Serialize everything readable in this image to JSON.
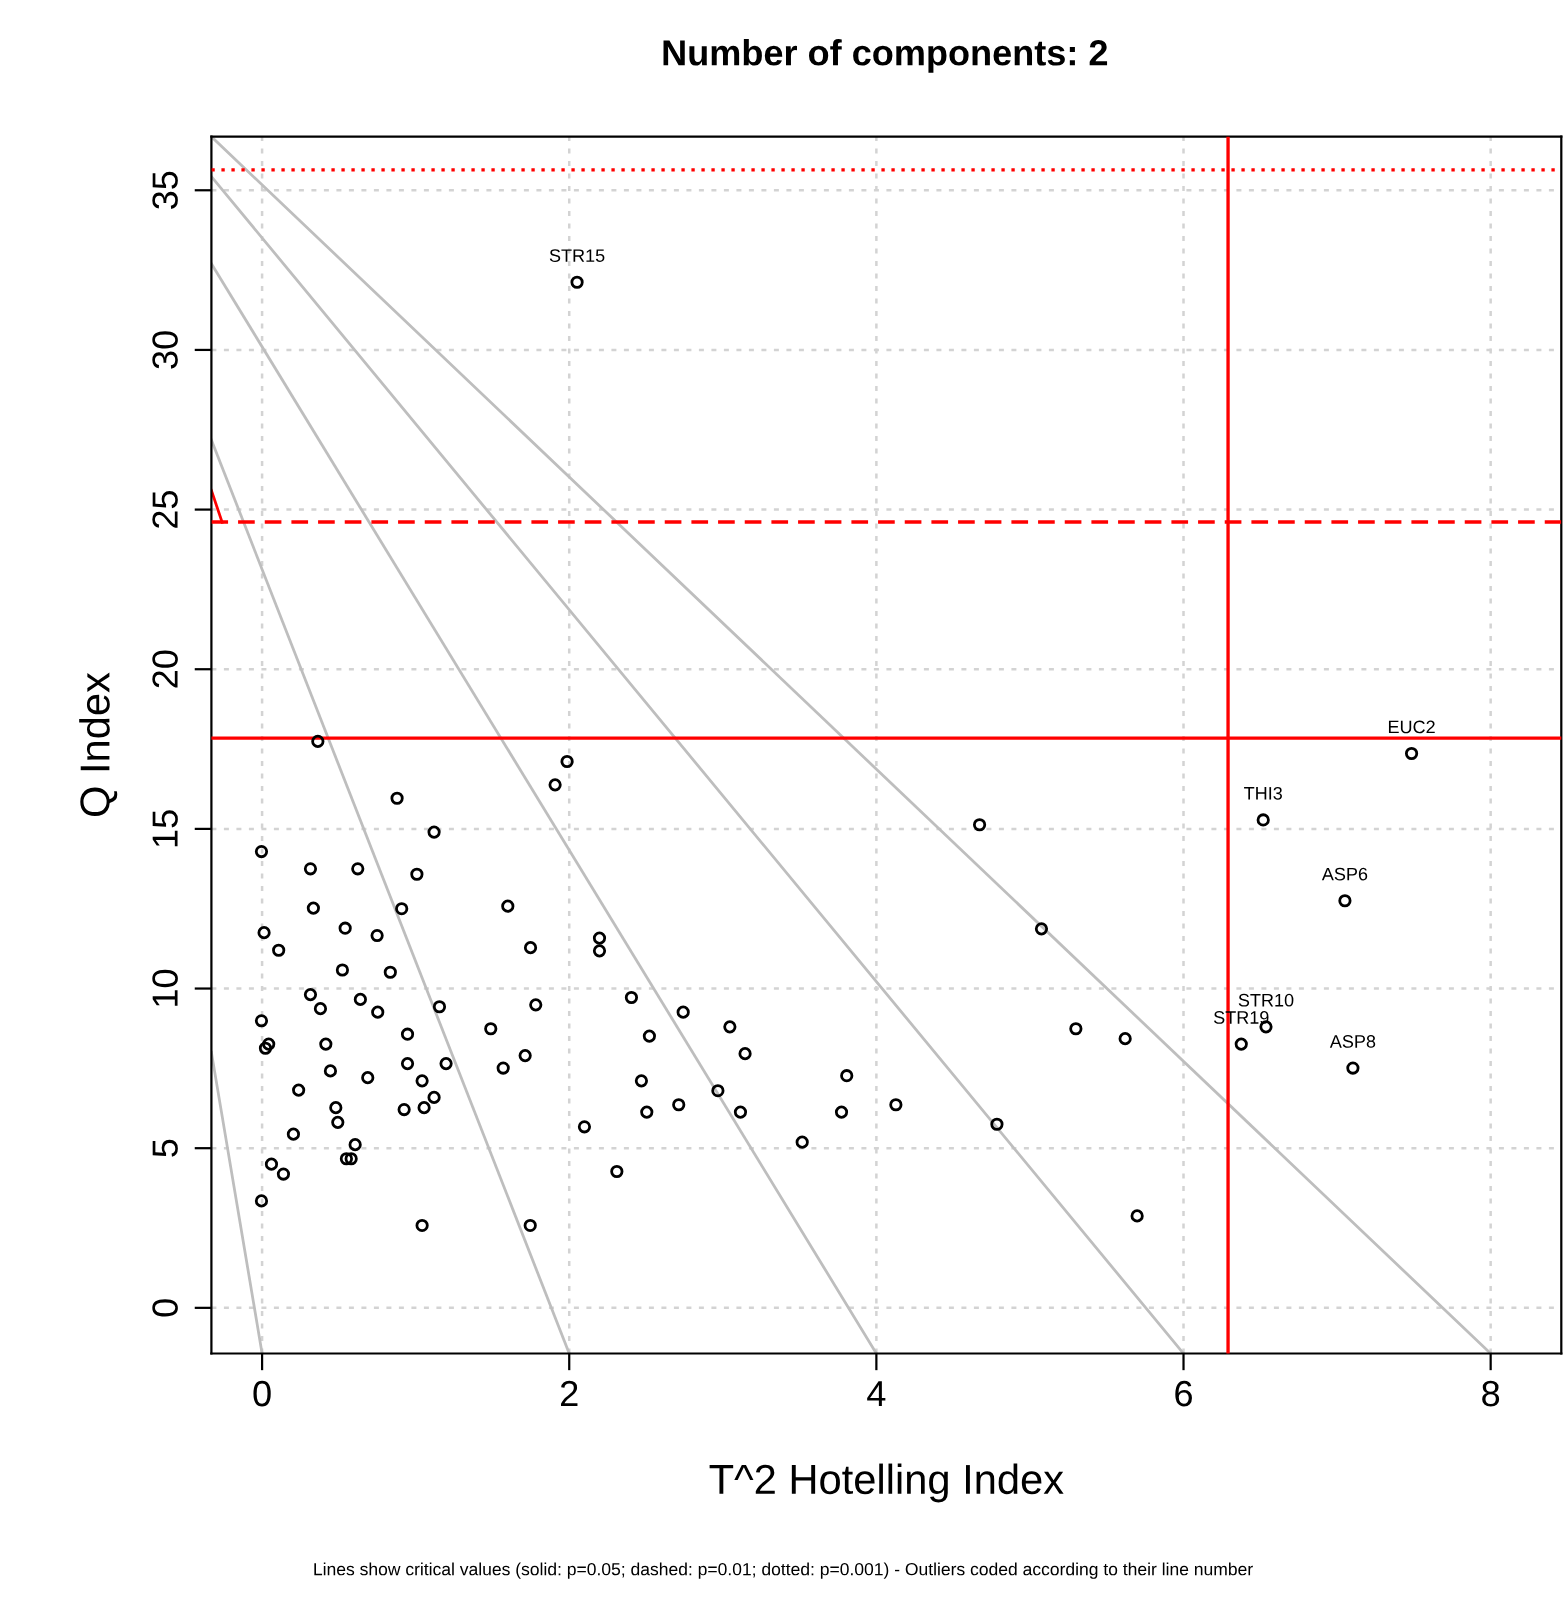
{
  "chart_data": {
    "type": "scatter",
    "title": "Number of components: 2",
    "xlabel": "T^2 Hotelling Index",
    "ylabel": "Q Index",
    "xlim": [
      -0.33,
      8.46
    ],
    "ylim": [
      -1.43,
      36.68
    ],
    "xticks": [
      0,
      2,
      4,
      6,
      8
    ],
    "yticks": [
      0,
      5,
      10,
      15,
      20,
      25,
      30,
      35
    ],
    "grid": true,
    "series": [
      {
        "marker": "circle",
        "color": "#000000",
        "x": [
          0.363,
          0.879,
          1.986,
          1.908,
          1.12,
          -0.004,
          0.315,
          0.623,
          1.008,
          0.334,
          0.909,
          0.013,
          0.108,
          0.541,
          0.749,
          0.523,
          0.835,
          0.315,
          0.64,
          0.38,
          0.753,
          1.155,
          1.489,
          -0.004,
          0.043,
          0.022,
          0.415,
          0.947,
          0.445,
          0.688,
          0.947,
          1.198,
          1.042,
          0.238,
          0.48,
          1.12,
          1.055,
          0.925,
          0.493,
          0.204,
          0.606,
          0.549,
          0.58,
          0.061,
          0.139,
          -0.004,
          1.042,
          1.746,
          5.698,
          1.6,
          1.748,
          2.197,
          2.197,
          1.782,
          1.713,
          1.57,
          2.405,
          2.742,
          3.046,
          2.522,
          3.145,
          3.807,
          2.47,
          2.968,
          2.505,
          2.713,
          3.115,
          3.773,
          2.099,
          3.517,
          2.31,
          4.672,
          5.075,
          5.299,
          5.62,
          4.127,
          4.785,
          7.485,
          6.519,
          7.051,
          6.537,
          6.376,
          7.103,
          2.051
        ],
        "values": [
          17.74,
          15.96,
          17.11,
          16.38,
          14.9,
          14.29,
          13.75,
          13.75,
          13.58,
          12.52,
          12.5,
          11.75,
          11.2,
          11.89,
          11.66,
          10.58,
          10.51,
          9.81,
          9.66,
          9.37,
          9.26,
          9.43,
          8.74,
          8.99,
          8.26,
          8.13,
          8.26,
          8.57,
          7.42,
          7.21,
          7.65,
          7.65,
          7.11,
          6.82,
          6.27,
          6.59,
          6.27,
          6.21,
          5.81,
          5.44,
          5.11,
          4.67,
          4.67,
          4.5,
          4.19,
          3.35,
          2.58,
          2.58,
          2.88,
          12.58,
          11.28,
          11.58,
          11.18,
          9.49,
          7.9,
          7.51,
          9.72,
          9.26,
          8.8,
          8.51,
          7.96,
          7.27,
          7.11,
          6.8,
          6.13,
          6.36,
          6.13,
          6.13,
          5.67,
          5.19,
          4.27,
          15.13,
          11.87,
          8.74,
          8.43,
          6.36,
          5.75,
          17.36,
          15.28,
          12.75,
          8.8,
          8.26,
          7.51,
          32.12
        ]
      },
      {
        "type": "line",
        "color": "#bebebe",
        "x": [
          -0.33,
          0
        ],
        "values": [
          8.0,
          -1.43
        ]
      },
      {
        "type": "line",
        "color": "#bebebe",
        "x": [
          -0.33,
          2
        ],
        "values": [
          27.18,
          -1.43
        ]
      },
      {
        "type": "line",
        "color": "#bebebe",
        "x": [
          -0.33,
          4
        ],
        "values": [
          32.7,
          -1.43
        ]
      },
      {
        "type": "line",
        "color": "#bebebe",
        "x": [
          -0.33,
          6
        ],
        "values": [
          35.43,
          -1.43
        ]
      },
      {
        "type": "line",
        "color": "#bebebe",
        "x": [
          -0.33,
          8
        ],
        "values": [
          36.68,
          -1.43
        ]
      },
      {
        "type": "line",
        "color": "#ff0000",
        "x": [
          -0.33,
          -0.26
        ],
        "values": [
          25.6,
          24.6
        ]
      }
    ],
    "ref_lines": [
      {
        "axis": "x",
        "value": 6.29,
        "color": "#ff0000",
        "line_style": "solid"
      },
      {
        "axis": "y",
        "value": 17.84,
        "color": "#ff0000",
        "line_style": "solid"
      },
      {
        "axis": "y",
        "value": 24.61,
        "color": "#ff0000",
        "line_style": "dashed"
      },
      {
        "axis": "y",
        "value": 35.64,
        "color": "#ff0000",
        "line_style": "dotted"
      }
    ],
    "annotations": [
      {
        "text": "EUC2",
        "x": 7.485,
        "y": 17.36
      },
      {
        "text": "THI3",
        "x": 6.519,
        "y": 15.28
      },
      {
        "text": "ASP6",
        "x": 7.051,
        "y": 12.75
      },
      {
        "text": "STR10",
        "x": 6.537,
        "y": 8.8
      },
      {
        "text": "STR19",
        "x": 6.376,
        "y": 8.26
      },
      {
        "text": "ASP8",
        "x": 7.103,
        "y": 7.51
      },
      {
        "text": "STR15",
        "x": 2.051,
        "y": 32.12
      },
      "Lines show critical values (solid: p=0.05; dashed: p=0.01; dotted: p=0.001) - Outliers coded according to their line number"
    ]
  }
}
